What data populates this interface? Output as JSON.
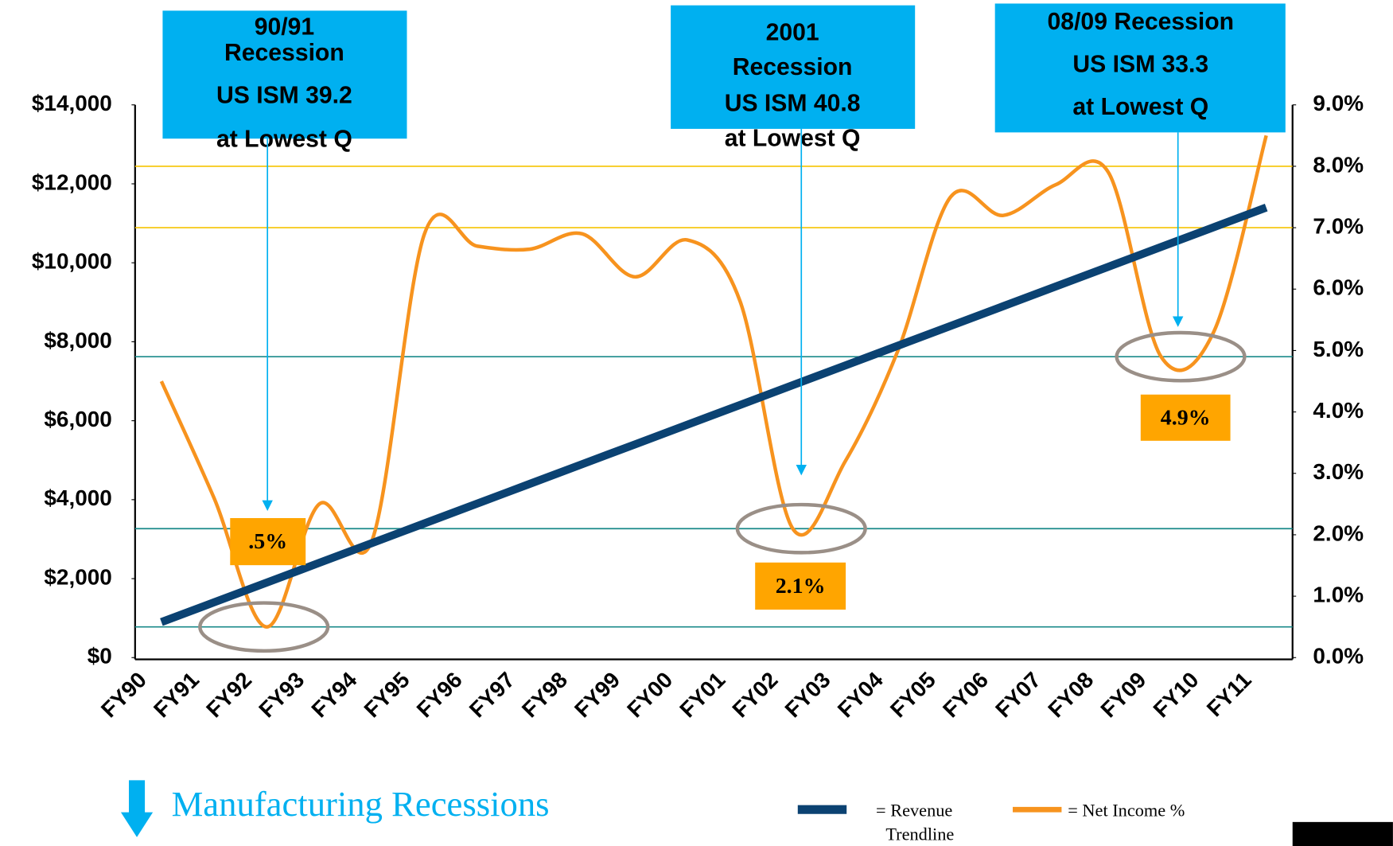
{
  "chart_data": {
    "type": "line",
    "categories": [
      "FY90",
      "FY91",
      "FY92",
      "FY93",
      "FY94",
      "FY95",
      "FY96",
      "FY97",
      "FY98",
      "FY99",
      "FY00",
      "FY01",
      "FY02",
      "FY03",
      "FY04",
      "FY05",
      "FY06",
      "FY07",
      "FY08",
      "FY09",
      "FY10",
      "FY11"
    ],
    "series": [
      {
        "name": "= Revenue Trendline",
        "color": "#0b4272",
        "values": [
          900,
          1400,
          1900,
          2400,
          2900,
          3400,
          3900,
          4400,
          4900,
          5400,
          5900,
          6400,
          6900,
          7400,
          7900,
          8400,
          8900,
          9400,
          9900,
          10400,
          10900,
          11400
        ]
      },
      {
        "name": "= Net Income %",
        "color": "#f7931e",
        "axis": "y2",
        "values": [
          4.5,
          2.6,
          0.5,
          2.5,
          1.9,
          6.9,
          6.7,
          6.65,
          6.9,
          6.2,
          6.8,
          5.8,
          2.1,
          3.2,
          5.0,
          7.5,
          7.2,
          7.7,
          7.9,
          4.9,
          5.3,
          8.5
        ]
      }
    ],
    "ylim": [
      0,
      14000
    ],
    "yticks": [
      {
        "value": 0,
        "label": "$0"
      },
      {
        "value": 2000,
        "label": "$2,000"
      },
      {
        "value": 4000,
        "label": "$4,000"
      },
      {
        "value": 6000,
        "label": "$6,000"
      },
      {
        "value": 8000,
        "label": "$8,000"
      },
      {
        "value": 10000,
        "label": "$10,000"
      },
      {
        "value": 12000,
        "label": "$12,000"
      },
      {
        "value": 14000,
        "label": "$14,000"
      }
    ],
    "y2lim": [
      0,
      9
    ],
    "y2ticks": [
      {
        "value": 0,
        "label": "0.0%"
      },
      {
        "value": 1,
        "label": "1.0%"
      },
      {
        "value": 2,
        "label": "2.0%"
      },
      {
        "value": 3,
        "label": "3.0%"
      },
      {
        "value": 4,
        "label": "4.0%"
      },
      {
        "value": 5,
        "label": "5.0%"
      },
      {
        "value": 6,
        "label": "6.0%"
      },
      {
        "value": 7,
        "label": "7.0%"
      },
      {
        "value": 8,
        "label": "8.0%"
      },
      {
        "value": 9,
        "label": "9.0%"
      }
    ],
    "reference_lines": [
      {
        "value": 0.5,
        "color": "#1a8a8a"
      },
      {
        "value": 2.1,
        "color": "#1a8a8a"
      },
      {
        "value": 4.9,
        "color": "#1a8a8a"
      },
      {
        "value": 7,
        "color": "#f5c400"
      },
      {
        "value": 8,
        "color": "#f5c400"
      }
    ],
    "annotations": [
      {
        "lines": [
          "90/91",
          "Recession",
          "US ISM 39.2",
          "at Lowest Q"
        ],
        "label": ".5%",
        "value": 0.5
      },
      {
        "lines": [
          "2001",
          "Recession",
          "US ISM 40.8",
          "at Lowest Q"
        ],
        "label": "2.1%",
        "value": 2.1
      },
      {
        "lines": [
          "08/09 Recession",
          "US ISM 33.3",
          "at Lowest Q"
        ],
        "label": "4.9%",
        "value": 4.9
      }
    ],
    "recession_note": "Manufacturing Recessions"
  }
}
